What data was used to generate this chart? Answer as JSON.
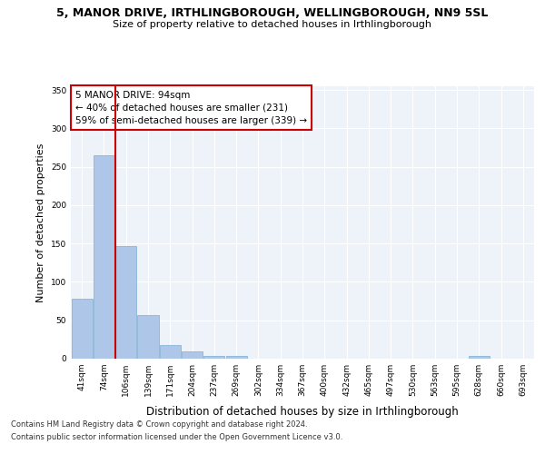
{
  "title_line1": "5, MANOR DRIVE, IRTHLINGBOROUGH, WELLINGBOROUGH, NN9 5SL",
  "title_line2": "Size of property relative to detached houses in Irthlingborough",
  "xlabel": "Distribution of detached houses by size in Irthlingborough",
  "ylabel": "Number of detached properties",
  "categories": [
    "41sqm",
    "74sqm",
    "106sqm",
    "139sqm",
    "171sqm",
    "204sqm",
    "237sqm",
    "269sqm",
    "302sqm",
    "334sqm",
    "367sqm",
    "400sqm",
    "432sqm",
    "465sqm",
    "497sqm",
    "530sqm",
    "563sqm",
    "595sqm",
    "628sqm",
    "660sqm",
    "693sqm"
  ],
  "values": [
    78,
    265,
    147,
    57,
    18,
    10,
    4,
    4,
    0,
    0,
    0,
    0,
    0,
    0,
    0,
    0,
    0,
    0,
    4,
    0,
    0
  ],
  "bar_color": "#aec6e8",
  "bar_edge_color": "#7bafd4",
  "red_line_x": 1.5,
  "annotation_text": "5 MANOR DRIVE: 94sqm\n← 40% of detached houses are smaller (231)\n59% of semi-detached houses are larger (339) →",
  "annotation_box_color": "#ffffff",
  "annotation_box_edge": "#cc0000",
  "property_line_color": "#cc0000",
  "ylim": [
    0,
    355
  ],
  "yticks": [
    0,
    50,
    100,
    150,
    200,
    250,
    300,
    350
  ],
  "background_color": "#eef3f9",
  "grid_color": "#ffffff",
  "footer_line1": "Contains HM Land Registry data © Crown copyright and database right 2024.",
  "footer_line2": "Contains public sector information licensed under the Open Government Licence v3.0.",
  "title_fontsize": 9,
  "subtitle_fontsize": 8,
  "axis_label_fontsize": 8,
  "tick_fontsize": 6.5,
  "annotation_fontsize": 7.5,
  "footer_fontsize": 6
}
